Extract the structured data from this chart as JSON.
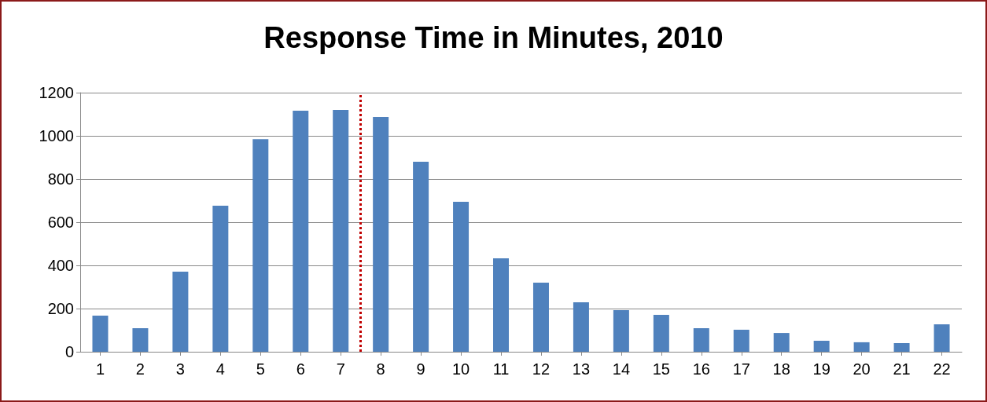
{
  "chart_data": {
    "type": "bar",
    "title": "Response Time in Minutes, 2010",
    "x": [
      1,
      2,
      3,
      4,
      5,
      6,
      7,
      8,
      9,
      10,
      11,
      12,
      13,
      14,
      15,
      16,
      17,
      18,
      19,
      20,
      21,
      22
    ],
    "values": [
      167,
      109,
      371,
      676,
      985,
      1116,
      1120,
      1087,
      880,
      695,
      433,
      320,
      229,
      193,
      171,
      109,
      102,
      87,
      51,
      44,
      40,
      127
    ],
    "color": "#4f81bd",
    "xlim": [
      0.5,
      22.5
    ],
    "xticks": [
      1,
      2,
      3,
      4,
      5,
      6,
      7,
      8,
      9,
      10,
      11,
      12,
      13,
      14,
      15,
      16,
      17,
      18,
      19,
      20,
      21,
      22
    ],
    "ylim": [
      0,
      1200
    ],
    "yticks": [
      0,
      200,
      400,
      600,
      800,
      1000,
      1200
    ],
    "grid": "y",
    "ref_lines": [
      {
        "axis": "x",
        "value": 7.5,
        "color": "#c00000",
        "line_style": "dotted"
      }
    ]
  }
}
